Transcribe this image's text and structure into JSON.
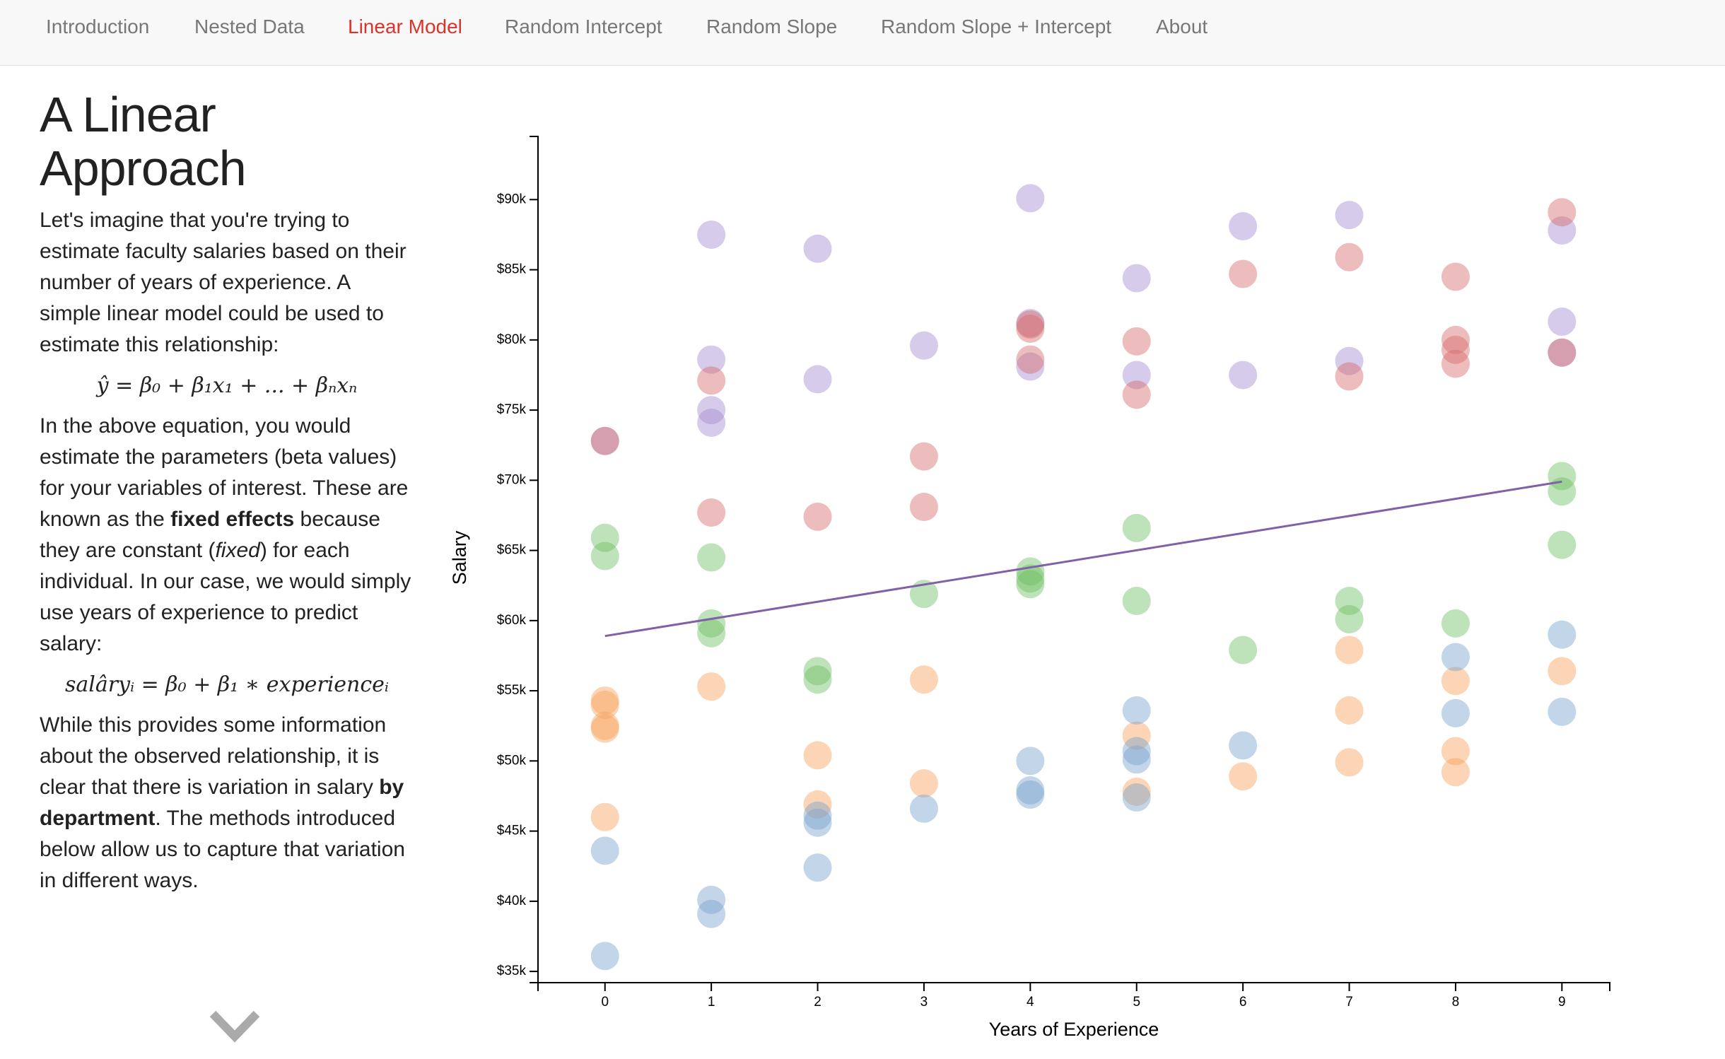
{
  "nav": {
    "items": [
      "Introduction",
      "Nested Data",
      "Linear Model",
      "Random Intercept",
      "Random Slope",
      "Random Slope + Intercept",
      "About"
    ],
    "active": 2
  },
  "article": {
    "title": "A Linear Approach",
    "blocks": [
      {
        "kind": "p",
        "runs": [
          "Let's imagine that you're trying to estimate faculty salaries based on their number of years of experience. A simple linear model could be used to estimate this relationship:"
        ]
      },
      {
        "kind": "eq",
        "runs": [
          "ŷ = β₀ + β₁x₁ + ... + βₙxₙ"
        ]
      },
      {
        "kind": "p",
        "runs": [
          "In the above equation, you would estimate the parameters (beta values) for your variables of interest. These are known as the ",
          {
            "text": "fixed effects",
            "style": "bold"
          },
          " because they are constant (",
          {
            "text": "fixed",
            "style": "italic"
          },
          ") for each individual. In our case, we would simply use years of experience to predict salary:"
        ]
      },
      {
        "kind": "eq",
        "runs": [
          "salâryᵢ = β₀ + β₁ ∗ experienceᵢ"
        ]
      },
      {
        "kind": "p",
        "runs": [
          "While this provides some information about the observed relationship, it is clear that there is variation in salary ",
          {
            "text": "by department",
            "style": "bold"
          },
          ". The methods introduced below allow us to capture that variation in different ways."
        ]
      }
    ]
  },
  "chart_data": {
    "type": "scatter",
    "x_label": "Years of Experience",
    "y_label": "Salary",
    "xlim": [
      -0.63,
      9.45
    ],
    "xticks": [
      0,
      1,
      2,
      3,
      4,
      5,
      6,
      7,
      8,
      9
    ],
    "ylim": [
      34200,
      94500
    ],
    "yticks": [
      {
        "value": 35000,
        "label": "$35k"
      },
      {
        "value": 40000,
        "label": "$40k"
      },
      {
        "value": 45000,
        "label": "$45k"
      },
      {
        "value": 50000,
        "label": "$50k"
      },
      {
        "value": 55000,
        "label": "$55k"
      },
      {
        "value": 60000,
        "label": "$60k"
      },
      {
        "value": 65000,
        "label": "$65k"
      },
      {
        "value": 70000,
        "label": "$70k"
      },
      {
        "value": 75000,
        "label": "$75k"
      },
      {
        "value": 80000,
        "label": "$80k"
      },
      {
        "value": 85000,
        "label": "$85k"
      },
      {
        "value": 90000,
        "label": "$90k"
      }
    ],
    "opacity": 0.45,
    "series": [
      {
        "color": "#a58bd0",
        "x": [
          1,
          2,
          4,
          5,
          6,
          7,
          9,
          1,
          1,
          1,
          2,
          3,
          4,
          4,
          5,
          6,
          7,
          9,
          9,
          0
        ],
        "values": [
          87500,
          86500,
          90100,
          84400,
          88100,
          88900,
          87800,
          78600,
          75000,
          74100,
          77200,
          79600,
          81200,
          78100,
          77500,
          77500,
          78500,
          81300,
          79100,
          72800
        ]
      },
      {
        "color": "#d66a6a",
        "x": [
          0,
          1,
          1,
          2,
          3,
          3,
          4,
          4,
          4,
          5,
          5,
          6,
          7,
          7,
          8,
          8,
          8,
          8,
          9,
          9
        ],
        "values": [
          72800,
          77100,
          67700,
          67400,
          71700,
          68100,
          81100,
          80800,
          78600,
          79900,
          76100,
          84700,
          85900,
          77400,
          84500,
          80000,
          79300,
          78300,
          89100,
          79100
        ]
      },
      {
        "color": "#6fbe63",
        "x": [
          0,
          0,
          1,
          1,
          1,
          2,
          2,
          3,
          4,
          4,
          4,
          5,
          5,
          6,
          7,
          7,
          8,
          9,
          9,
          9
        ],
        "values": [
          65900,
          64600,
          64500,
          59800,
          59100,
          56400,
          55800,
          61900,
          63500,
          63000,
          62600,
          66600,
          61400,
          57900,
          61400,
          60100,
          59800,
          70300,
          69200,
          65400
        ]
      },
      {
        "color": "#f7a15a",
        "x": [
          0,
          0,
          0,
          0,
          0,
          1,
          2,
          2,
          3,
          3,
          5,
          5,
          6,
          7,
          7,
          7,
          8,
          8,
          8,
          9
        ],
        "values": [
          54300,
          54000,
          52500,
          52300,
          46000,
          55300,
          50400,
          46900,
          55800,
          48400,
          51800,
          47800,
          48900,
          57900,
          53600,
          49900,
          55700,
          50700,
          49200,
          56400
        ]
      },
      {
        "color": "#7aa1cf",
        "x": [
          0,
          0,
          1,
          1,
          2,
          2,
          2,
          3,
          4,
          4,
          4,
          5,
          5,
          5,
          5,
          6,
          8,
          8,
          9,
          9
        ],
        "values": [
          43600,
          36100,
          40100,
          39100,
          46100,
          45600,
          42400,
          46600,
          50000,
          47900,
          47600,
          53600,
          50700,
          50100,
          47400,
          51100,
          57400,
          53400,
          59000,
          53500
        ]
      },
      {
        "type": "line",
        "color": "#8060a8",
        "x": [
          0,
          9
        ],
        "values": [
          58900,
          69900
        ]
      }
    ]
  }
}
